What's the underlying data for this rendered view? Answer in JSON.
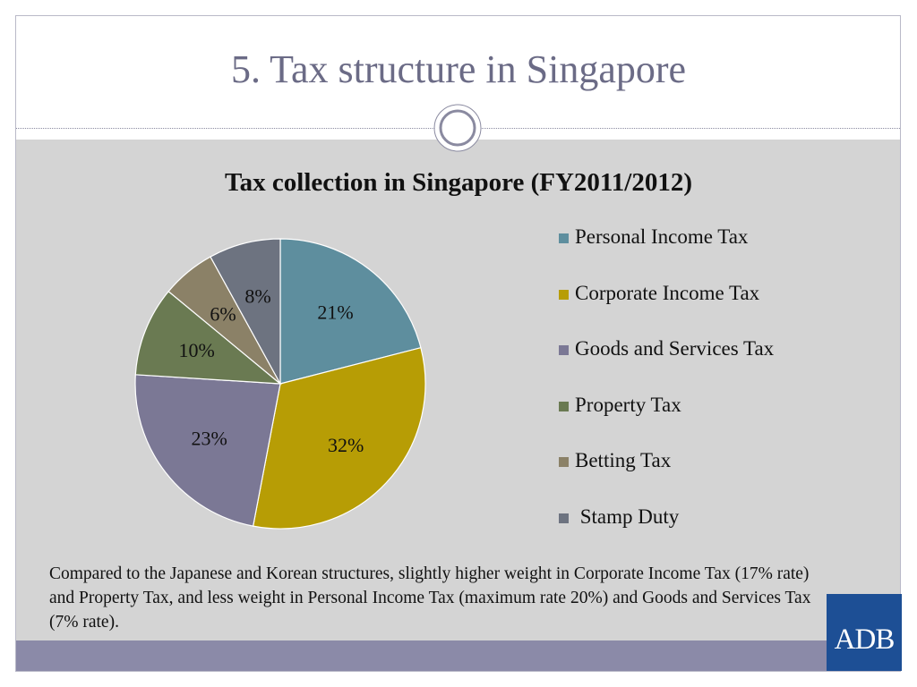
{
  "slide": {
    "title": "5. Tax structure in Singapore",
    "note": "Compared to the Japanese and Korean structures, slightly higher weight in Corporate Income Tax (17% rate) and Property Tax, and less weight in Personal Income Tax (maximum rate 20%) and Goods and Services Tax (7% rate).",
    "logo_text": "ADB"
  },
  "colors": {
    "title_text": "#6b6b86",
    "content_bg": "#d4d4d4",
    "footer_bar": "#8b8aa8",
    "logo_bg": "#1d4f95"
  },
  "chart_data": {
    "type": "pie",
    "title": "Tax collection in Singapore (FY2011/2012)",
    "legend_position": "right",
    "start_angle_deg": 0,
    "direction": "clockwise",
    "slices": [
      {
        "label": "Personal Income Tax",
        "value": 21,
        "display": "21%",
        "color": "#5e8e9e"
      },
      {
        "label": "Corporate Income Tax",
        "value": 32,
        "display": "32%",
        "color": "#b79d05"
      },
      {
        "label": "Goods and Services Tax",
        "value": 23,
        "display": "23%",
        "color": "#7b7895"
      },
      {
        "label": "Property Tax",
        "value": 10,
        "display": "10%",
        "color": "#6a7a52"
      },
      {
        "label": "Betting Tax",
        "value": 6,
        "display": "6%",
        "color": "#8b8167"
      },
      {
        "label": "Stamp Duty",
        "value": 8,
        "display": "8%",
        "color": "#6d7380"
      }
    ],
    "legend_labels": [
      "Personal Income Tax",
      "Corporate Income Tax",
      "Goods and Services Tax",
      "Property Tax",
      "Betting Tax",
      " Stamp Duty"
    ]
  }
}
